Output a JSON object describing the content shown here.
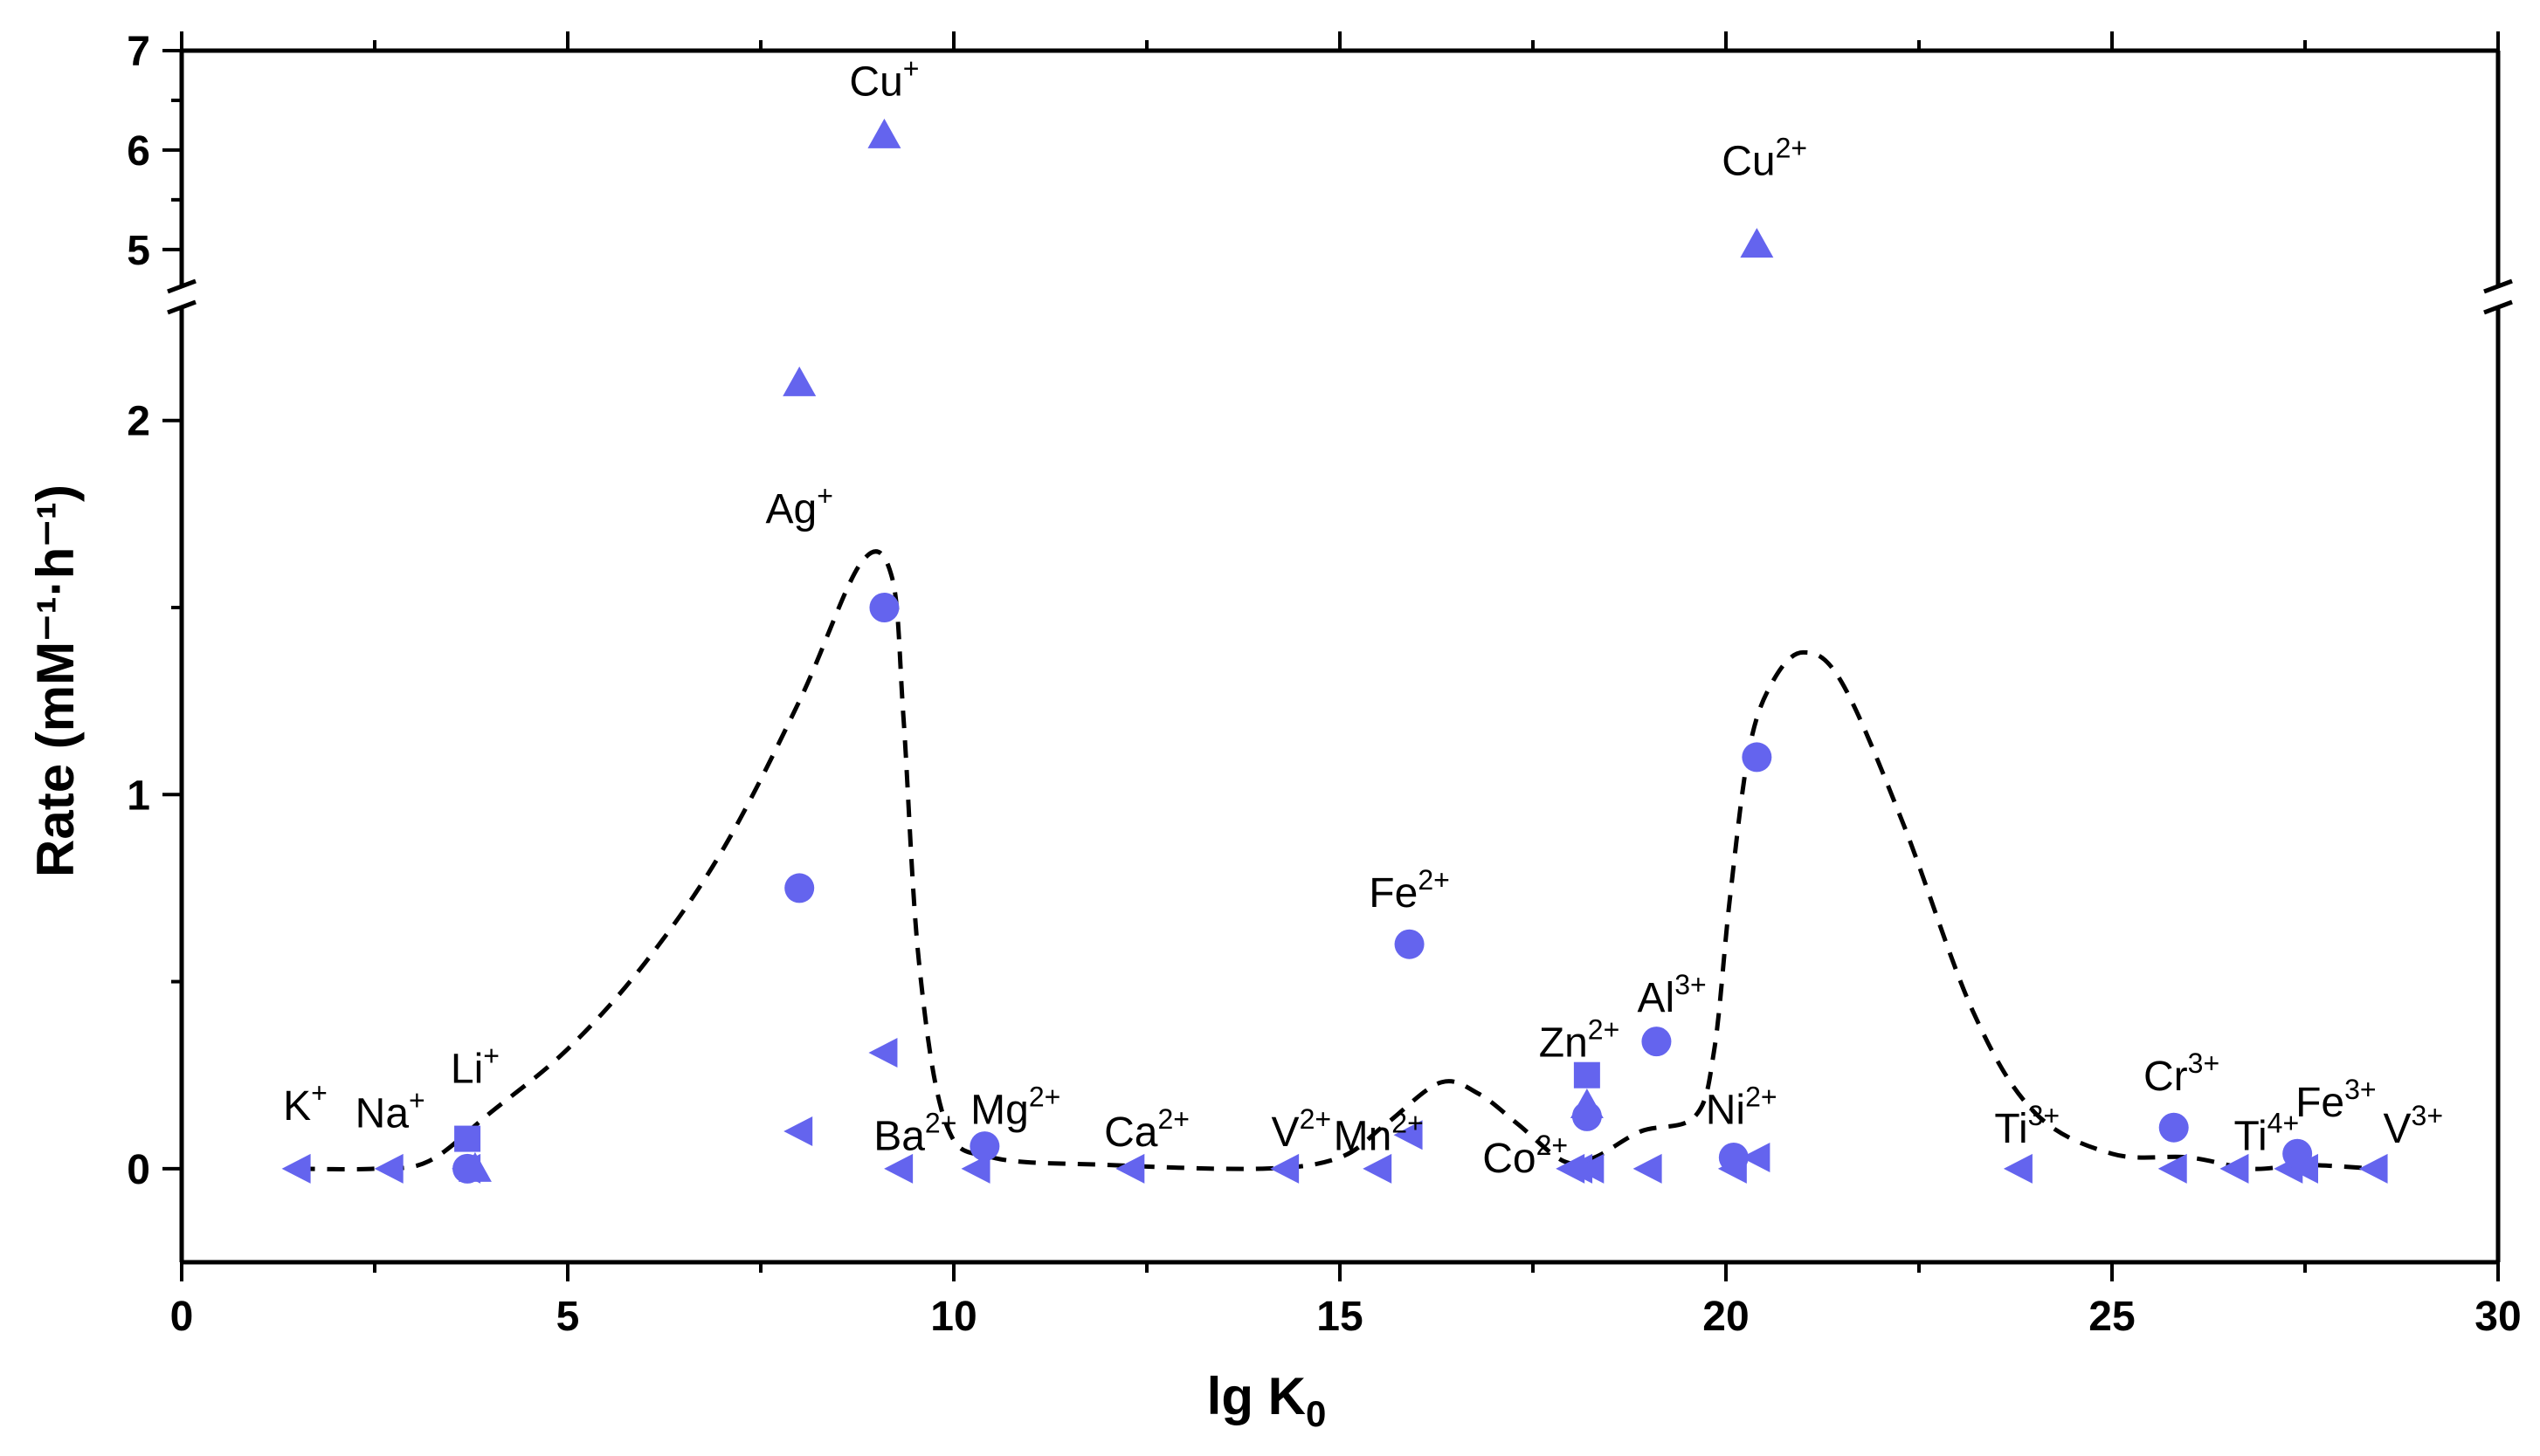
{
  "chart_data": {
    "type": "scatter",
    "xlabel": "lg K",
    "xlabel_sub": "0",
    "ylabel": "Rate (mM⁻¹·h⁻¹)",
    "xlim": [
      0,
      30
    ],
    "x_ticks": [
      "0",
      "5",
      "10",
      "15",
      "20",
      "25",
      "30"
    ],
    "y_axis_broken": true,
    "y_lower_range": [
      -0.25,
      2.2
    ],
    "y_upper_range": [
      4.7,
      7.0
    ],
    "y_ticks": [
      "0",
      "1",
      "2",
      "5",
      "6",
      "7"
    ],
    "marker_color": "#6464ee",
    "series": [
      {
        "name": "triangle-left",
        "marker": "triangle-left",
        "points": [
          {
            "x": 1.5,
            "y": 0
          },
          {
            "x": 2.7,
            "y": 0
          },
          {
            "x": 3.7,
            "y": 0
          },
          {
            "x": 8.0,
            "y": 0.1
          },
          {
            "x": 9.1,
            "y": 0.31
          },
          {
            "x": 9.3,
            "y": 0
          },
          {
            "x": 10.3,
            "y": 0
          },
          {
            "x": 12.3,
            "y": 0
          },
          {
            "x": 14.3,
            "y": 0
          },
          {
            "x": 15.5,
            "y": 0
          },
          {
            "x": 15.9,
            "y": 0.09
          },
          {
            "x": 18.0,
            "y": 0
          },
          {
            "x": 18.1,
            "y": 0
          },
          {
            "x": 18.25,
            "y": 0
          },
          {
            "x": 19.0,
            "y": 0
          },
          {
            "x": 20.1,
            "y": 0
          },
          {
            "x": 20.4,
            "y": 0.03
          },
          {
            "x": 23.8,
            "y": 0
          },
          {
            "x": 25.8,
            "y": 0
          },
          {
            "x": 26.6,
            "y": 0
          },
          {
            "x": 27.3,
            "y": 0
          },
          {
            "x": 27.5,
            "y": 0
          },
          {
            "x": 28.4,
            "y": 0
          }
        ]
      },
      {
        "name": "circle",
        "marker": "circle",
        "points": [
          {
            "x": 3.7,
            "y": 0.0
          },
          {
            "x": 8.0,
            "y": 0.75
          },
          {
            "x": 9.1,
            "y": 1.5
          },
          {
            "x": 10.4,
            "y": 0.06
          },
          {
            "x": 15.9,
            "y": 0.6
          },
          {
            "x": 18.2,
            "y": 0.14
          },
          {
            "x": 19.1,
            "y": 0.34
          },
          {
            "x": 20.1,
            "y": 0.03
          },
          {
            "x": 20.4,
            "y": 1.1
          },
          {
            "x": 25.8,
            "y": 0.11
          },
          {
            "x": 27.4,
            "y": 0.04
          }
        ]
      },
      {
        "name": "square",
        "marker": "square",
        "points": [
          {
            "x": 3.7,
            "y": 0.08
          },
          {
            "x": 18.2,
            "y": 0.25
          }
        ]
      },
      {
        "name": "triangle-up",
        "marker": "triangle-up",
        "points": [
          {
            "x": 3.8,
            "y": 0.0
          },
          {
            "x": 8.0,
            "y": 2.1
          },
          {
            "x": 9.1,
            "y": 6.15
          },
          {
            "x": 18.2,
            "y": 0.17
          },
          {
            "x": 20.4,
            "y": 5.05
          }
        ]
      }
    ],
    "trend_line": [
      {
        "x": 1.5,
        "y": 0
      },
      {
        "x": 2.5,
        "y": 0
      },
      {
        "x": 3.2,
        "y": 0.02
      },
      {
        "x": 4.0,
        "y": 0.15
      },
      {
        "x": 5.0,
        "y": 0.32
      },
      {
        "x": 6.0,
        "y": 0.55
      },
      {
        "x": 7.0,
        "y": 0.85
      },
      {
        "x": 8.0,
        "y": 1.25
      },
      {
        "x": 8.8,
        "y": 1.62
      },
      {
        "x": 9.2,
        "y": 1.58
      },
      {
        "x": 9.35,
        "y": 1.2
      },
      {
        "x": 9.55,
        "y": 0.55
      },
      {
        "x": 9.9,
        "y": 0.12
      },
      {
        "x": 10.5,
        "y": 0.03
      },
      {
        "x": 12.0,
        "y": 0.01
      },
      {
        "x": 14.0,
        "y": 0
      },
      {
        "x": 15.0,
        "y": 0.03
      },
      {
        "x": 15.6,
        "y": 0.12
      },
      {
        "x": 16.3,
        "y": 0.23
      },
      {
        "x": 16.8,
        "y": 0.2
      },
      {
        "x": 17.3,
        "y": 0.12
      },
      {
        "x": 17.9,
        "y": 0.02
      },
      {
        "x": 18.3,
        "y": 0.03
      },
      {
        "x": 18.9,
        "y": 0.1
      },
      {
        "x": 19.6,
        "y": 0.14
      },
      {
        "x": 19.85,
        "y": 0.32
      },
      {
        "x": 20.05,
        "y": 0.72
      },
      {
        "x": 20.3,
        "y": 1.12
      },
      {
        "x": 20.6,
        "y": 1.3
      },
      {
        "x": 21.0,
        "y": 1.38
      },
      {
        "x": 21.5,
        "y": 1.3
      },
      {
        "x": 22.3,
        "y": 0.92
      },
      {
        "x": 23.2,
        "y": 0.42
      },
      {
        "x": 24.0,
        "y": 0.15
      },
      {
        "x": 25.0,
        "y": 0.04
      },
      {
        "x": 26.0,
        "y": 0.03
      },
      {
        "x": 26.8,
        "y": 0
      },
      {
        "x": 27.5,
        "y": 0.01
      },
      {
        "x": 28.4,
        "y": 0
      }
    ],
    "annotations": [
      {
        "base": "K",
        "sup": "+",
        "x": 1.6,
        "y": 0.13
      },
      {
        "base": "Na",
        "sup": "+",
        "x": 2.7,
        "y": 0.11
      },
      {
        "base": "Li",
        "sup": "+",
        "x": 3.8,
        "y": 0.23
      },
      {
        "base": "Ag",
        "sup": "+",
        "x": 8.0,
        "y": 2.25
      },
      {
        "base": "Cu",
        "sup": "+",
        "x": 9.1,
        "y": 6.55
      },
      {
        "base": "Ba",
        "sup": "2+",
        "x": 9.5,
        "y": 0.05
      },
      {
        "base": "Mg",
        "sup": "2+",
        "x": 10.8,
        "y": 0.12
      },
      {
        "base": "Ca",
        "sup": "2+",
        "x": 12.5,
        "y": 0.06
      },
      {
        "base": "V",
        "sup": "2+",
        "x": 14.5,
        "y": 0.06
      },
      {
        "base": "Mn",
        "sup": "2+",
        "x": 15.5,
        "y": 0.05
      },
      {
        "base": "Fe",
        "sup": "2+",
        "x": 15.9,
        "y": 0.7
      },
      {
        "base": "Zn",
        "sup": "2+",
        "x": 18.1,
        "y": 0.3
      },
      {
        "base": "Al",
        "sup": "3+",
        "x": 19.3,
        "y": 0.42
      },
      {
        "base": "Co",
        "sup": "2+",
        "x": 17.4,
        "y": -0.01
      },
      {
        "base": "Ni",
        "sup": "2+",
        "x": 20.2,
        "y": 0.12
      },
      {
        "base": "Cu",
        "sup": "2+",
        "x": 20.5,
        "y": 5.75
      },
      {
        "base": "Ti",
        "sup": "3+",
        "x": 23.9,
        "y": 0.07
      },
      {
        "base": "Cr",
        "sup": "3+",
        "x": 25.9,
        "y": 0.21
      },
      {
        "base": "Ti",
        "sup": "4+",
        "x": 27.0,
        "y": 0.05
      },
      {
        "base": "Fe",
        "sup": "3+",
        "x": 27.9,
        "y": 0.14
      },
      {
        "base": "V",
        "sup": "3+",
        "x": 28.9,
        "y": 0.07
      }
    ]
  }
}
